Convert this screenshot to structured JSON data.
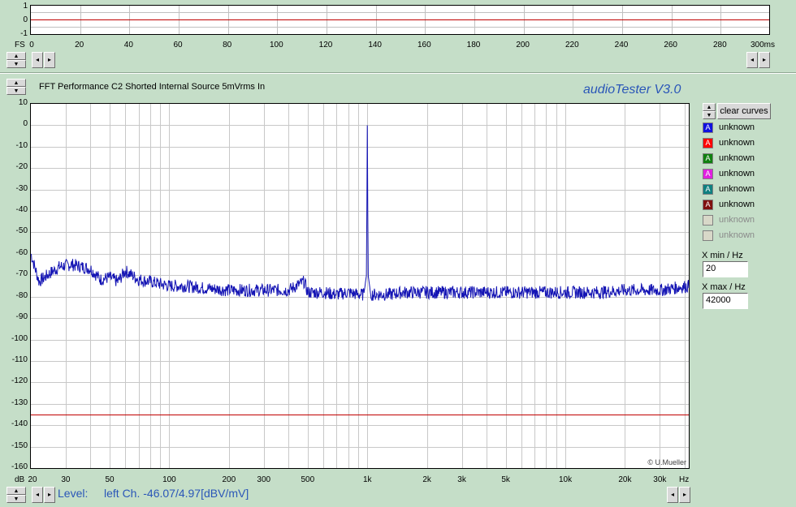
{
  "top_scope": {
    "y_ticks": [
      "1",
      "0",
      "-1"
    ],
    "fs_label": "FS",
    "x_ticks": [
      "0",
      "20",
      "40",
      "60",
      "80",
      "100",
      "120",
      "140",
      "160",
      "180",
      "200",
      "220",
      "240",
      "260",
      "280",
      "300ms"
    ]
  },
  "fft": {
    "title": "FFT Performance C2 Shorted Internal Source 5mVrms In",
    "app_title": "audioTester  V3.0",
    "y_ticks": [
      "10",
      "0",
      "-10",
      "-20",
      "-30",
      "-40",
      "-50",
      "-60",
      "-70",
      "-80",
      "-90",
      "-100",
      "-110",
      "-120",
      "-130",
      "-140",
      "-150",
      "-160"
    ],
    "y_unit": "dB",
    "x_ticks": [
      "20",
      "30",
      "50",
      "100",
      "200",
      "300",
      "500",
      "1k",
      "2k",
      "3k",
      "5k",
      "10k",
      "20k",
      "30k"
    ],
    "x_unit": "Hz",
    "credit": "© U.Mueller",
    "status": {
      "level_label": "Level:",
      "readout": "left Ch. -46.07/4.97[dBV/mV]"
    }
  },
  "sidebar": {
    "clear_button": "clear curves",
    "curves": [
      {
        "marker": "A",
        "color": "#1010e0",
        "label": "unknown",
        "active": true
      },
      {
        "marker": "A",
        "color": "#ff0000",
        "label": "unknown",
        "active": true
      },
      {
        "marker": "A",
        "color": "#108010",
        "label": "unknown",
        "active": true
      },
      {
        "marker": "A",
        "color": "#e020e0",
        "label": "unknown",
        "active": true
      },
      {
        "marker": "A",
        "color": "#108080",
        "label": "unknown",
        "active": true
      },
      {
        "marker": "A",
        "color": "#801010",
        "label": "unknown",
        "active": true
      },
      {
        "marker": "",
        "color": "#d8d8c8",
        "label": "unknown",
        "active": false
      },
      {
        "marker": "",
        "color": "#d8d8c8",
        "label": "unknown",
        "active": false
      }
    ],
    "xmin_label": "X min / Hz",
    "xmin_value": "20",
    "xmax_label": "X max / Hz",
    "xmax_value": "42000"
  },
  "chart_data": {
    "type": "line",
    "title": "FFT Performance C2 Shorted Internal Source 5mVrms In",
    "xlabel": "Hz",
    "ylabel": "dB",
    "x_scale": "log",
    "xlim": [
      20,
      42000
    ],
    "ylim": [
      -160,
      10
    ],
    "grid": true,
    "reference_line": {
      "y": -135,
      "color": "#c00000"
    },
    "series": [
      {
        "color": "#1010c0",
        "x": [
          20,
          22,
          25,
          28,
          32,
          36,
          40,
          45,
          50,
          55,
          60,
          70,
          80,
          100,
          120,
          150,
          200,
          250,
          300,
          400,
          480,
          500,
          600,
          700,
          800,
          900,
          960,
          990,
          1000,
          1010,
          1040,
          1100,
          1300,
          1500,
          2000,
          3000,
          5000,
          7000,
          10000,
          15000,
          20000,
          30000,
          42000
        ],
        "y": [
          -60,
          -73,
          -69,
          -66,
          -65,
          -66,
          -67,
          -72,
          -71,
          -73,
          -68,
          -72,
          -73,
          -75,
          -75,
          -76,
          -77,
          -77,
          -77,
          -77,
          -73,
          -78,
          -78,
          -79,
          -78,
          -79,
          -79,
          -70,
          0,
          -70,
          -79,
          -79,
          -79,
          -78,
          -78,
          -78,
          -78,
          -78,
          -78,
          -78,
          -77,
          -77,
          -75
        ]
      }
    ]
  }
}
